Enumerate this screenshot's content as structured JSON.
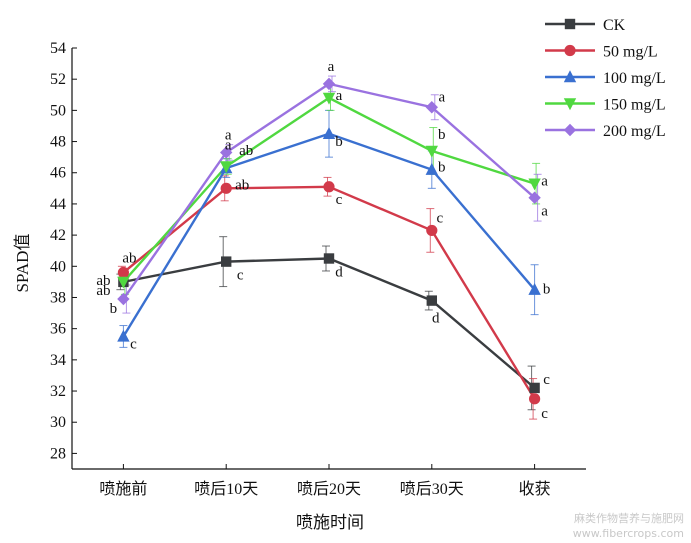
{
  "chart_data": {
    "type": "line",
    "categories": [
      "喷施前",
      "喷后10天",
      "喷后20天",
      "喷后30天",
      "收获"
    ],
    "xlabel": "喷施时间",
    "ylabel": "SPAD值",
    "ylim": [
      27,
      54
    ],
    "yticks": [
      28,
      30,
      32,
      34,
      36,
      38,
      40,
      42,
      44,
      46,
      48,
      50,
      52,
      54
    ],
    "grid": false,
    "legend_position": "top-right",
    "series": [
      {
        "name": "CK",
        "color": "#3a3d40",
        "marker": "square",
        "values": [
          39.0,
          40.3,
          40.5,
          37.8,
          32.2
        ],
        "errors": [
          0.5,
          1.6,
          0.8,
          0.6,
          1.4
        ],
        "letters": [
          "ab",
          "c",
          "d",
          "d",
          "c"
        ]
      },
      {
        "name": "50 mg/L",
        "color": "#d23a4a",
        "marker": "circle",
        "values": [
          39.6,
          45.0,
          45.1,
          42.3,
          31.5
        ],
        "errors": [
          0.4,
          0.8,
          0.6,
          1.4,
          1.3
        ],
        "letters": [
          "ab",
          "ab",
          "c",
          "c",
          "c"
        ]
      },
      {
        "name": "100 mg/L",
        "color": "#3a70d0",
        "marker": "triangle-up",
        "values": [
          35.5,
          46.3,
          48.5,
          46.2,
          38.5
        ],
        "errors": [
          0.7,
          0.6,
          1.5,
          1.2,
          1.6
        ],
        "letters": [
          "c",
          "ab",
          "b",
          "b",
          "b"
        ]
      },
      {
        "name": "150 mg/L",
        "color": "#50d840",
        "marker": "triangle-down",
        "values": [
          39.0,
          46.4,
          50.8,
          47.4,
          45.3
        ],
        "errors": [
          0.8,
          0.5,
          0.8,
          1.5,
          1.3
        ],
        "letters": [
          "ab",
          "a",
          "a",
          "b",
          "a"
        ]
      },
      {
        "name": "200 mg/L",
        "color": "#9a72e0",
        "marker": "diamond",
        "values": [
          37.9,
          47.3,
          51.7,
          50.2,
          44.4
        ],
        "errors": [
          0.9,
          0.5,
          0.5,
          0.8,
          1.5
        ],
        "letters": [
          "b",
          "a",
          "a",
          "a",
          "a"
        ]
      }
    ]
  },
  "watermark": "麻类作物营养与施肥网\nwww.fibercrops.com"
}
